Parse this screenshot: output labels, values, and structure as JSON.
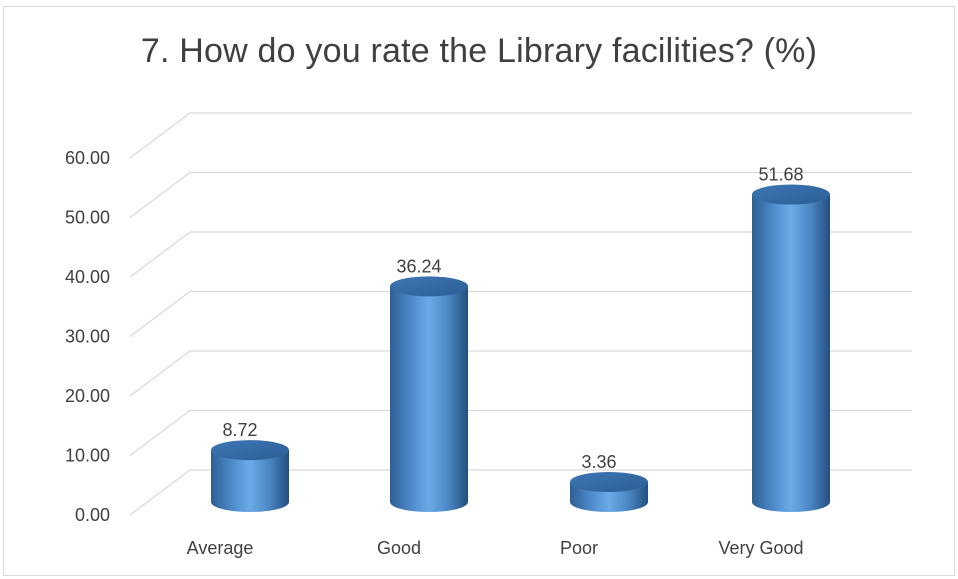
{
  "chart_data": {
    "type": "bar",
    "title": "7. How do you rate the Library facilities? (%)",
    "categories": [
      "Average",
      "Good",
      "Poor",
      "Very Good"
    ],
    "values": [
      8.72,
      36.24,
      3.36,
      51.68
    ],
    "value_labels": [
      "8.72",
      "36.24",
      "3.36",
      "51.68"
    ],
    "y_ticks": [
      "0.00",
      "10.00",
      "20.00",
      "30.00",
      "40.00",
      "50.00",
      "60.00"
    ],
    "ylim": [
      0,
      60
    ],
    "xlabel": "",
    "ylabel": "",
    "grid": true,
    "legend": "none",
    "style": "3d-cylinder",
    "bar_color": "#5b9bd5",
    "grid_color": "#d9d9d9",
    "text_color": "#404040"
  }
}
